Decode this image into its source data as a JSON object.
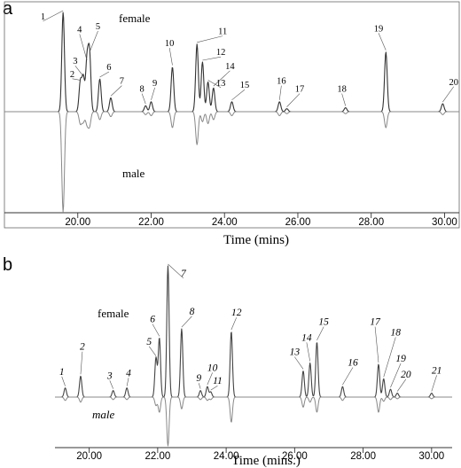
{
  "chart_data": [
    {
      "panel": "a",
      "type": "line",
      "xlabel": "Time (mins)",
      "ylabel": "",
      "xlim": [
        18.0,
        30.4
      ],
      "ticks": [
        20.0,
        22.0,
        24.0,
        26.0,
        28.0,
        30.0
      ],
      "tick_labels": [
        "20.00",
        "22.00",
        "24.00",
        "26.00",
        "28.00",
        "30.00"
      ],
      "series": [
        {
          "name": "female",
          "direction": "up",
          "color": "#333333"
        },
        {
          "name": "male",
          "direction": "down",
          "color": "#888888"
        }
      ],
      "peaks": [
        {
          "label": "1",
          "x": 19.6,
          "female": 1.0,
          "male": 1.0,
          "lx": 19.05,
          "ly": 0.93
        },
        {
          "label": "2",
          "x": 20.07,
          "female": 0.3,
          "male": 0.12,
          "lx": 19.85,
          "ly": 0.35
        },
        {
          "label": "3",
          "x": 20.15,
          "female": 0.34,
          "male": 0.1,
          "lx": 19.93,
          "ly": 0.48
        },
        {
          "label": "4",
          "x": 20.25,
          "female": 0.5,
          "male": 0.12,
          "lx": 20.05,
          "ly": 0.8
        },
        {
          "label": "5",
          "x": 20.32,
          "female": 0.58,
          "male": 0.14,
          "lx": 20.55,
          "ly": 0.83
        },
        {
          "label": "6",
          "x": 20.6,
          "female": 0.33,
          "male": 0.08,
          "lx": 20.85,
          "ly": 0.42
        },
        {
          "label": "7",
          "x": 20.9,
          "female": 0.14,
          "male": 0.05,
          "lx": 21.2,
          "ly": 0.28
        },
        {
          "label": "8",
          "x": 21.85,
          "female": 0.06,
          "male": 0.03,
          "lx": 21.75,
          "ly": 0.2
        },
        {
          "label": "9",
          "x": 22.0,
          "female": 0.1,
          "male": 0.04,
          "lx": 22.1,
          "ly": 0.26
        },
        {
          "label": "10",
          "x": 22.58,
          "female": 0.45,
          "male": 0.16,
          "lx": 22.5,
          "ly": 0.66
        },
        {
          "label": "11",
          "x": 23.25,
          "female": 0.68,
          "male": 0.33,
          "lx": 23.95,
          "ly": 0.78
        },
        {
          "label": "12",
          "x": 23.4,
          "female": 0.5,
          "male": 0.1,
          "lx": 23.9,
          "ly": 0.57
        },
        {
          "label": "13",
          "x": 23.55,
          "female": 0.3,
          "male": 0.12,
          "lx": 23.9,
          "ly": 0.26
        },
        {
          "label": "14",
          "x": 23.7,
          "female": 0.24,
          "male": 0.08,
          "lx": 24.15,
          "ly": 0.43
        },
        {
          "label": "15",
          "x": 24.2,
          "female": 0.1,
          "male": 0.04,
          "lx": 24.55,
          "ly": 0.24
        },
        {
          "label": "16",
          "x": 25.5,
          "female": 0.1,
          "male": 0.04,
          "lx": 25.55,
          "ly": 0.28
        },
        {
          "label": "17",
          "x": 25.7,
          "female": 0.03,
          "male": 0.02,
          "lx": 26.05,
          "ly": 0.2
        },
        {
          "label": "18",
          "x": 27.3,
          "female": 0.04,
          "male": 0.02,
          "lx": 27.2,
          "ly": 0.2
        },
        {
          "label": "19",
          "x": 28.4,
          "female": 0.6,
          "male": 0.16,
          "lx": 28.2,
          "ly": 0.81
        },
        {
          "label": "20",
          "x": 29.95,
          "female": 0.08,
          "male": 0.03,
          "lx": 30.25,
          "ly": 0.27
        }
      ]
    },
    {
      "panel": "b",
      "type": "line",
      "xlabel": "Time (mins.)",
      "ylabel": "",
      "xlim": [
        19.0,
        30.6
      ],
      "ticks": [
        20.0,
        22.0,
        24.0,
        26.0,
        28.0,
        30.0
      ],
      "tick_labels": [
        "20.00",
        "22.00",
        "24.00",
        "26.00",
        "28.00",
        "30.00"
      ],
      "series": [
        {
          "name": "female",
          "direction": "up",
          "color": "#444444"
        },
        {
          "name": "male",
          "direction": "down",
          "color": "#888888"
        }
      ],
      "peaks": [
        {
          "label": "1",
          "x": 19.3,
          "female": 0.07,
          "male": 0.04,
          "lx": 19.2,
          "ly": 0.17
        },
        {
          "label": "2",
          "x": 19.75,
          "female": 0.16,
          "male": 0.06,
          "lx": 19.8,
          "ly": 0.36
        },
        {
          "label": "3",
          "x": 20.7,
          "female": 0.05,
          "male": 0.03,
          "lx": 20.6,
          "ly": 0.14
        },
        {
          "label": "4",
          "x": 21.1,
          "female": 0.07,
          "male": 0.03,
          "lx": 21.15,
          "ly": 0.16
        },
        {
          "label": "5",
          "x": 21.95,
          "female": 0.3,
          "male": 0.1,
          "lx": 21.75,
          "ly": 0.4
        },
        {
          "label": "6",
          "x": 22.05,
          "female": 0.45,
          "male": 0.18,
          "lx": 21.85,
          "ly": 0.57
        },
        {
          "label": "7",
          "x": 22.3,
          "female": 1.0,
          "male": 0.58,
          "lx": 22.75,
          "ly": 0.92
        },
        {
          "label": "8",
          "x": 22.7,
          "female": 0.52,
          "male": 0.14,
          "lx": 23.0,
          "ly": 0.63
        },
        {
          "label": "9",
          "x": 23.25,
          "female": 0.05,
          "male": 0.03,
          "lx": 23.2,
          "ly": 0.12
        },
        {
          "label": "10",
          "x": 23.45,
          "female": 0.08,
          "male": 0.04,
          "lx": 23.6,
          "ly": 0.2
        },
        {
          "label": "11",
          "x": 23.55,
          "female": 0.04,
          "male": 0.03,
          "lx": 23.75,
          "ly": 0.1
        },
        {
          "label": "12",
          "x": 24.15,
          "female": 0.5,
          "male": 0.3,
          "lx": 24.3,
          "ly": 0.62
        },
        {
          "label": "13",
          "x": 26.25,
          "female": 0.2,
          "male": 0.12,
          "lx": 26.0,
          "ly": 0.32
        },
        {
          "label": "14",
          "x": 26.45,
          "female": 0.26,
          "male": 0.06,
          "lx": 26.35,
          "ly": 0.43
        },
        {
          "label": "15",
          "x": 26.65,
          "female": 0.42,
          "male": 0.18,
          "lx": 26.85,
          "ly": 0.55
        },
        {
          "label": "16",
          "x": 27.4,
          "female": 0.08,
          "male": 0.04,
          "lx": 27.7,
          "ly": 0.24
        },
        {
          "label": "17",
          "x": 28.45,
          "female": 0.25,
          "male": 0.18,
          "lx": 28.35,
          "ly": 0.55
        },
        {
          "label": "18",
          "x": 28.6,
          "female": 0.14,
          "male": 0.05,
          "lx": 28.95,
          "ly": 0.47
        },
        {
          "label": "19",
          "x": 28.8,
          "female": 0.06,
          "male": 0.03,
          "lx": 29.1,
          "ly": 0.27
        },
        {
          "label": "20",
          "x": 29.0,
          "female": 0.03,
          "male": 0.02,
          "lx": 29.25,
          "ly": 0.15
        },
        {
          "label": "21",
          "x": 30.0,
          "female": 0.03,
          "male": 0.02,
          "lx": 30.15,
          "ly": 0.18
        }
      ]
    }
  ]
}
